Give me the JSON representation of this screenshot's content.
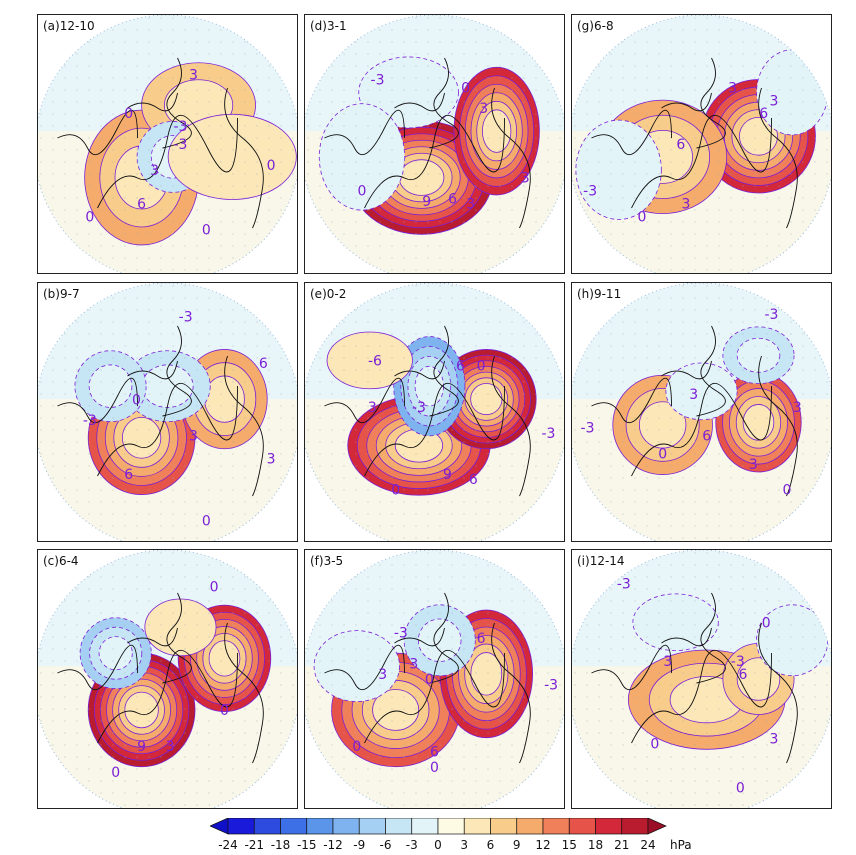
{
  "panels": [
    {
      "id": "a",
      "label": "(a)12-10",
      "contours": [
        "0",
        "-3",
        "3",
        "-3",
        "0",
        "3",
        "0",
        "6",
        "0"
      ]
    },
    {
      "id": "d",
      "label": "(d)3-1",
      "contours": [
        "-3",
        "0",
        "3",
        "9",
        "6",
        "3",
        "0",
        "3"
      ]
    },
    {
      "id": "g",
      "label": "(g)6-8",
      "contours": [
        "3",
        "3",
        "6",
        "6",
        "-3",
        "3",
        "0"
      ]
    },
    {
      "id": "b",
      "label": "(b)9-7",
      "contours": [
        "-3",
        "6",
        "0",
        "-3",
        "3",
        "6",
        "3",
        "0"
      ]
    },
    {
      "id": "e",
      "label": "(e)0-2",
      "contours": [
        "-6",
        "6",
        "0",
        "3",
        "-3",
        "9",
        "6",
        "0",
        "-3"
      ]
    },
    {
      "id": "h",
      "label": "(h)9-11",
      "contours": [
        "-3",
        "3",
        "6",
        "-3",
        "0",
        "3",
        "0",
        "3"
      ]
    },
    {
      "id": "c",
      "label": "(c)6-4",
      "contours": [
        "0",
        "0",
        "9",
        "3",
        "0"
      ]
    },
    {
      "id": "f",
      "label": "(f)3-5",
      "contours": [
        "-3",
        "3",
        "6",
        "3",
        "0",
        "0",
        "6",
        "-3",
        "0"
      ]
    },
    {
      "id": "i",
      "label": "(i)12-14",
      "contours": [
        "-3",
        "0",
        "3",
        "-3",
        "6",
        "0",
        "3",
        "0"
      ]
    }
  ],
  "colorbar": {
    "ticks": [
      "-24",
      "-21",
      "-18",
      "-15",
      "-12",
      "-9",
      "-6",
      "-3",
      "0",
      "3",
      "6",
      "9",
      "12",
      "15",
      "18",
      "21",
      "24"
    ],
    "unit": "hPa",
    "colors": [
      "#1a1adb",
      "#2e4be0",
      "#3d6fe6",
      "#5b95ea",
      "#7fb3ef",
      "#a6d0f3",
      "#c6e6f6",
      "#e2f4f8",
      "#fdfbe4",
      "#fbe7b8",
      "#f8cd8c",
      "#f5ab6c",
      "#f0805a",
      "#e65348",
      "#d3283a",
      "#b81c2e"
    ],
    "under_color": "#1010c8",
    "over_color": "#9a0f25"
  },
  "colors": {
    "contour_line": "#7b1fd6",
    "coast_line": "#111111",
    "neutral_fill": "#e9f6f9"
  }
}
